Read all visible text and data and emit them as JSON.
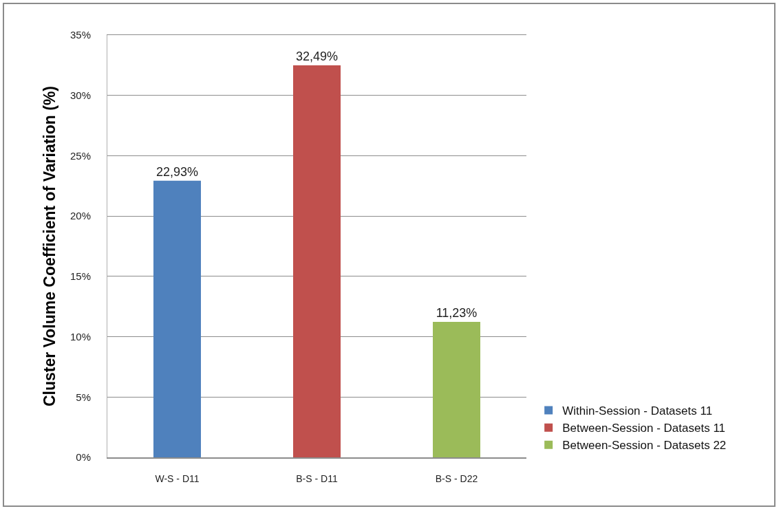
{
  "chart_data": {
    "type": "bar",
    "ylabel": "Cluster Volume Coefficient of Variation (%)",
    "categories": [
      "W-S - D11",
      "B-S - D11",
      "B-S - D22"
    ],
    "series": [
      {
        "name": "Within-Session - Datasets 11",
        "color": "#4f81bd",
        "values": [
          22.93,
          null,
          null
        ],
        "value_labels": [
          "22,93%",
          null,
          null
        ]
      },
      {
        "name": "Between-Session - Datasets 11",
        "color": "#c0504d",
        "values": [
          null,
          32.49,
          null
        ],
        "value_labels": [
          null,
          "32,49%",
          null
        ]
      },
      {
        "name": "Between-Session - Datasets 22",
        "color": "#9bbb59",
        "values": [
          null,
          null,
          11.23
        ],
        "value_labels": [
          null,
          null,
          "11,23%"
        ]
      }
    ],
    "ylim": [
      0,
      35
    ],
    "yticks": [
      {
        "value": 0,
        "label": "0%"
      },
      {
        "value": 5,
        "label": "5%"
      },
      {
        "value": 10,
        "label": "10%"
      },
      {
        "value": 15,
        "label": "15%"
      },
      {
        "value": 20,
        "label": "20%"
      },
      {
        "value": 25,
        "label": "25%"
      },
      {
        "value": 30,
        "label": "30%"
      },
      {
        "value": 35,
        "label": "35%"
      }
    ],
    "grid": "y",
    "legend": "bottom right"
  }
}
